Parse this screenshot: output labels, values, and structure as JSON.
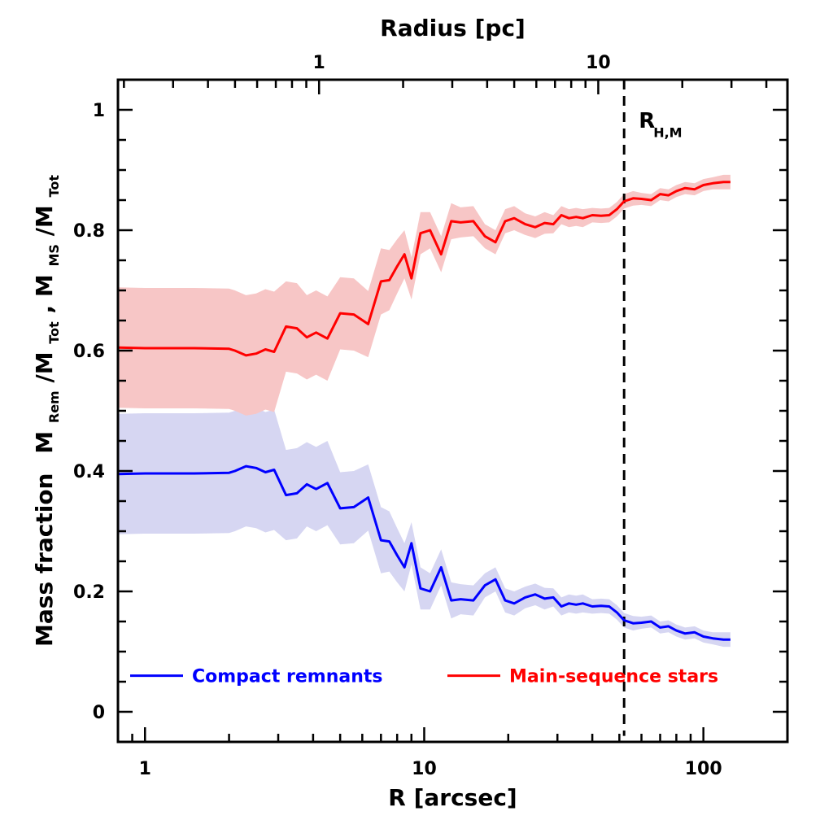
{
  "chart_data": {
    "type": "line",
    "xscale": "log",
    "xlim": [
      0.8,
      200
    ],
    "ylim": [
      -0.05,
      1.05
    ],
    "xlabel": "R [arcsec]",
    "top_xlabel": "Radius [pc]",
    "ylabel_parts": [
      "Mass fraction",
      "M",
      "Rem",
      "/M",
      "Tot",
      ", M",
      "MS",
      "/M",
      "Tot"
    ],
    "x_ticks": [
      1,
      10,
      100
    ],
    "x_tick_labels": [
      "1",
      "10",
      "100"
    ],
    "y_ticks": [
      0,
      0.2,
      0.4,
      0.6,
      0.8,
      1
    ],
    "y_tick_labels": [
      "0",
      "0.2",
      "0.4",
      "0.6",
      "0.8",
      "1"
    ],
    "top_ticks_arcsec": [
      4.2,
      42
    ],
    "top_tick_labels": [
      "1",
      "10"
    ],
    "pc_per_arcsec": 0.238,
    "reference_line": {
      "x": 52,
      "label": "R",
      "label_sub": "H,M"
    },
    "x": [
      0.8,
      1.0,
      1.5,
      2.0,
      2.1,
      2.3,
      2.5,
      2.7,
      2.9,
      3.2,
      3.5,
      3.8,
      4.1,
      4.5,
      5.0,
      5.6,
      6.3,
      7.0,
      7.5,
      8.0,
      8.5,
      9.0,
      9.7,
      10.5,
      11.5,
      12.5,
      13.5,
      15.0,
      16.5,
      18.0,
      19.5,
      21.0,
      23.0,
      25.0,
      27.0,
      29.0,
      31.0,
      33.0,
      35.0,
      37.0,
      40.0,
      43.0,
      46.0,
      49.0,
      52.0,
      56.0,
      60.0,
      65.0,
      70.0,
      75.0,
      80.0,
      86.0,
      93.0,
      100.0,
      108.0,
      118.0,
      125.0
    ],
    "series": [
      {
        "name": "Compact remnants",
        "color": "#0000ff",
        "band_color": "#d6d6f2",
        "values": [
          0.395,
          0.396,
          0.396,
          0.397,
          0.4,
          0.408,
          0.405,
          0.398,
          0.402,
          0.36,
          0.363,
          0.378,
          0.37,
          0.38,
          0.338,
          0.34,
          0.356,
          0.285,
          0.283,
          0.26,
          0.24,
          0.28,
          0.205,
          0.2,
          0.24,
          0.185,
          0.187,
          0.185,
          0.21,
          0.22,
          0.185,
          0.18,
          0.19,
          0.195,
          0.188,
          0.19,
          0.175,
          0.18,
          0.178,
          0.18,
          0.175,
          0.176,
          0.175,
          0.165,
          0.152,
          0.147,
          0.148,
          0.15,
          0.14,
          0.142,
          0.135,
          0.13,
          0.132,
          0.125,
          0.122,
          0.12,
          0.12
        ],
        "band_halfwidth": [
          0.1,
          0.1,
          0.1,
          0.1,
          0.1,
          0.1,
          0.1,
          0.1,
          0.1,
          0.075,
          0.075,
          0.07,
          0.07,
          0.07,
          0.06,
          0.06,
          0.055,
          0.055,
          0.05,
          0.045,
          0.04,
          0.035,
          0.035,
          0.03,
          0.03,
          0.03,
          0.025,
          0.025,
          0.02,
          0.02,
          0.02,
          0.02,
          0.018,
          0.018,
          0.018,
          0.015,
          0.015,
          0.015,
          0.015,
          0.015,
          0.012,
          0.012,
          0.012,
          0.012,
          0.012,
          0.012,
          0.01,
          0.01,
          0.01,
          0.01,
          0.01,
          0.01,
          0.01,
          0.01,
          0.01,
          0.012,
          0.012
        ]
      },
      {
        "name": "Main-sequence stars",
        "color": "#ff0000",
        "band_color": "#f7c6c6",
        "values": [
          0.605,
          0.604,
          0.604,
          0.603,
          0.6,
          0.592,
          0.595,
          0.602,
          0.598,
          0.64,
          0.637,
          0.622,
          0.63,
          0.62,
          0.662,
          0.66,
          0.644,
          0.715,
          0.717,
          0.74,
          0.76,
          0.72,
          0.795,
          0.8,
          0.76,
          0.815,
          0.813,
          0.815,
          0.79,
          0.78,
          0.815,
          0.82,
          0.81,
          0.805,
          0.812,
          0.81,
          0.825,
          0.82,
          0.822,
          0.82,
          0.825,
          0.824,
          0.825,
          0.835,
          0.848,
          0.853,
          0.852,
          0.85,
          0.86,
          0.858,
          0.865,
          0.87,
          0.868,
          0.875,
          0.878,
          0.88,
          0.88
        ],
        "band_halfwidth": [
          0.1,
          0.1,
          0.1,
          0.1,
          0.1,
          0.1,
          0.1,
          0.1,
          0.1,
          0.075,
          0.075,
          0.07,
          0.07,
          0.07,
          0.06,
          0.06,
          0.055,
          0.055,
          0.05,
          0.045,
          0.04,
          0.035,
          0.035,
          0.03,
          0.03,
          0.03,
          0.025,
          0.025,
          0.02,
          0.02,
          0.02,
          0.02,
          0.018,
          0.018,
          0.018,
          0.015,
          0.015,
          0.015,
          0.015,
          0.015,
          0.012,
          0.012,
          0.012,
          0.012,
          0.012,
          0.012,
          0.01,
          0.01,
          0.01,
          0.01,
          0.01,
          0.01,
          0.01,
          0.01,
          0.01,
          0.012,
          0.012
        ]
      }
    ],
    "legend": {
      "placement": "bottom",
      "entries": [
        "Compact remnants",
        "Main-sequence stars"
      ]
    }
  }
}
